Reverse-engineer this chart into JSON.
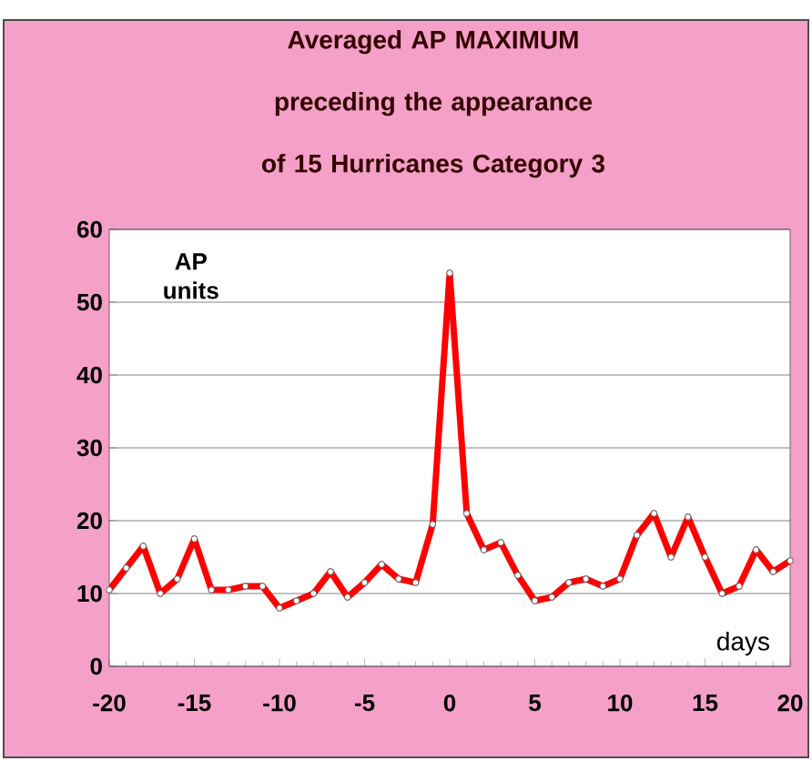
{
  "chart_data": {
    "type": "line",
    "title": "Averaged AP MAXIMUM preceding the appearance of 15 Hurricanes Category 3",
    "xlabel": "days",
    "ylabel": "AP units",
    "x": [
      -20,
      -19,
      -18,
      -17,
      -16,
      -15,
      -14,
      -13,
      -12,
      -11,
      -10,
      -9,
      -8,
      -7,
      -6,
      -5,
      -4,
      -3,
      -2,
      -1,
      0,
      1,
      2,
      3,
      4,
      5,
      6,
      7,
      8,
      9,
      10,
      11,
      12,
      13,
      14,
      15,
      16,
      17,
      18,
      19,
      20
    ],
    "series": [
      {
        "color": "#ff0000",
        "values": [
          10.5,
          13.5,
          16.5,
          10,
          12,
          17.5,
          10.5,
          10.5,
          11,
          11,
          8,
          9,
          10,
          13,
          9.5,
          11.5,
          14,
          12,
          11.5,
          19.5,
          54,
          21,
          16,
          17,
          12.5,
          9,
          9.5,
          11.5,
          12,
          11,
          12,
          18,
          21,
          15,
          20.5,
          15,
          10,
          11,
          16,
          13,
          14.5
        ]
      }
    ],
    "xlim": [
      -20,
      20
    ],
    "xticks": [
      -20,
      -15,
      -10,
      -5,
      0,
      5,
      10,
      15,
      20
    ],
    "ylim": [
      0,
      60
    ],
    "yticks": [
      0,
      10,
      20,
      30,
      40,
      50,
      60
    ],
    "grid": "y",
    "marker": "circle",
    "line_style": "solid"
  }
}
